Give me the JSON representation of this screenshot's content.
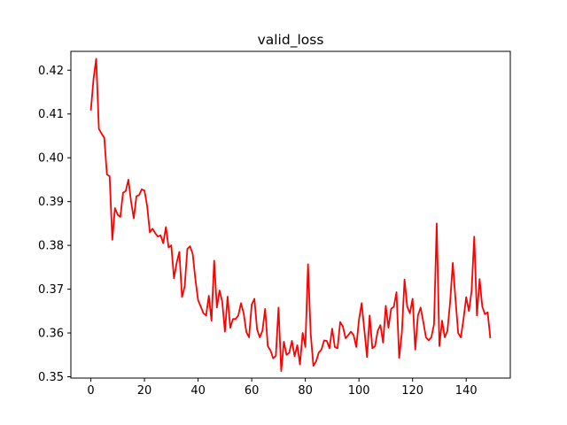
{
  "chart_data": {
    "type": "line",
    "title": "valid_loss",
    "xlabel": "",
    "ylabel": "",
    "xlim": [
      -7.45,
      156.45
    ],
    "ylim": [
      0.3497,
      0.4243
    ],
    "xticks": [
      0,
      20,
      40,
      60,
      80,
      100,
      120,
      140
    ],
    "yticks": [
      0.35,
      0.36,
      0.37,
      0.38,
      0.39,
      0.4,
      0.41,
      0.42
    ],
    "ytick_labels": [
      "0.35",
      "0.36",
      "0.37",
      "0.38",
      "0.39",
      "0.40",
      "0.41",
      "0.42"
    ],
    "grid": false,
    "series": [
      {
        "color": "#ff0000",
        "y": [
          0.4108,
          0.418,
          0.4226,
          0.4066,
          0.4055,
          0.4046,
          0.3962,
          0.3958,
          0.3813,
          0.3885,
          0.387,
          0.3865,
          0.392,
          0.3924,
          0.395,
          0.39,
          0.3862,
          0.3912,
          0.3915,
          0.3928,
          0.3925,
          0.389,
          0.383,
          0.3838,
          0.3828,
          0.382,
          0.3823,
          0.3805,
          0.3842,
          0.3795,
          0.38,
          0.3725,
          0.376,
          0.3785,
          0.3682,
          0.3706,
          0.3792,
          0.3798,
          0.378,
          0.3722,
          0.3675,
          0.366,
          0.3645,
          0.364,
          0.3685,
          0.3628,
          0.3765,
          0.3658,
          0.3697,
          0.3672,
          0.3603,
          0.3683,
          0.3612,
          0.3632,
          0.3632,
          0.364,
          0.3668,
          0.3645,
          0.3602,
          0.359,
          0.3665,
          0.3678,
          0.3608,
          0.359,
          0.3605,
          0.3655,
          0.357,
          0.356,
          0.3542,
          0.3548,
          0.3658,
          0.3513,
          0.358,
          0.355,
          0.3555,
          0.3582,
          0.3547,
          0.3572,
          0.3528,
          0.36,
          0.3568,
          0.3757,
          0.3598,
          0.3525,
          0.3535,
          0.3555,
          0.3562,
          0.3583,
          0.3582,
          0.3565,
          0.361,
          0.3568,
          0.3565,
          0.3625,
          0.3615,
          0.3588,
          0.3595,
          0.3603,
          0.3595,
          0.3568,
          0.363,
          0.3668,
          0.3608,
          0.3545,
          0.364,
          0.3565,
          0.357,
          0.3605,
          0.3618,
          0.3578,
          0.3662,
          0.3612,
          0.3655,
          0.366,
          0.3693,
          0.3543,
          0.36,
          0.3722,
          0.366,
          0.3645,
          0.3678,
          0.3562,
          0.364,
          0.3658,
          0.3625,
          0.359,
          0.3583,
          0.359,
          0.362,
          0.385,
          0.357,
          0.3628,
          0.359,
          0.3605,
          0.367,
          0.376,
          0.3678,
          0.36,
          0.359,
          0.3632,
          0.3682,
          0.365,
          0.3695,
          0.382,
          0.364,
          0.3723,
          0.366,
          0.3643,
          0.3647,
          0.3588
        ]
      }
    ]
  }
}
